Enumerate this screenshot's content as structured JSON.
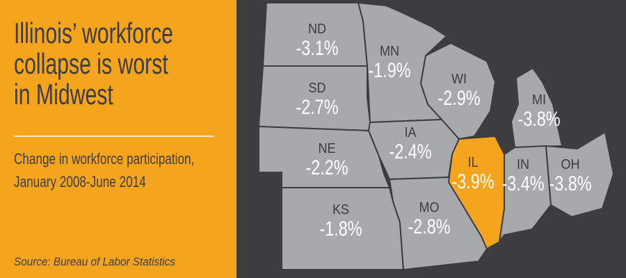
{
  "header": {
    "title_lines": [
      "Illinois’ workforce",
      "collapse is worst",
      "in Midwest"
    ],
    "subtitle_lines": [
      "Change in workforce participation,",
      "January 2008-June 2014"
    ],
    "source": "Source: Bureau of Labor Statistics"
  },
  "map": {
    "colors": {
      "state": "#a7a9ac",
      "highlight": "#f5a41d"
    },
    "states": [
      {
        "abbr": "ND",
        "label": "-3.1%"
      },
      {
        "abbr": "SD",
        "label": "-2.7%"
      },
      {
        "abbr": "NE",
        "label": "-2.2%"
      },
      {
        "abbr": "KS",
        "label": "-1.8%"
      },
      {
        "abbr": "MN",
        "label": "-1.9%"
      },
      {
        "abbr": "IA",
        "label": "-2.4%"
      },
      {
        "abbr": "MO",
        "label": "-2.8%"
      },
      {
        "abbr": "WI",
        "label": "-2.9%"
      },
      {
        "abbr": "IL",
        "label": "-3.9%",
        "highlight": true
      },
      {
        "abbr": "MI",
        "label": "-3.8%"
      },
      {
        "abbr": "IN",
        "label": "-3.4%"
      },
      {
        "abbr": "OH",
        "label": "-3.8%"
      }
    ]
  }
}
